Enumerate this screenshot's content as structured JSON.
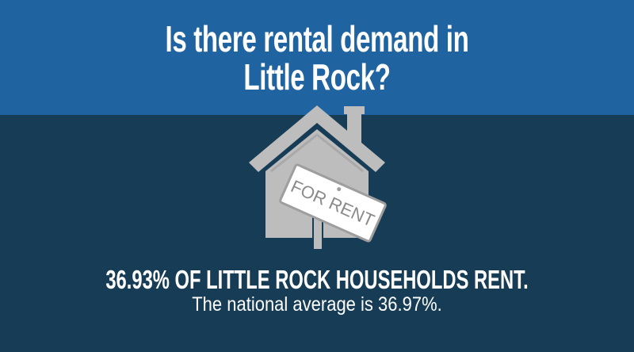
{
  "header": {
    "title_lines": [
      "Is there rental demand in",
      "Little Rock?"
    ]
  },
  "icon": {
    "sign_text": "FOR RENT"
  },
  "stat": {
    "headline": "36.93% OF LITTLE ROCK HOUSEHOLDS RENT.",
    "subline": "The national average is 36.97%."
  }
}
